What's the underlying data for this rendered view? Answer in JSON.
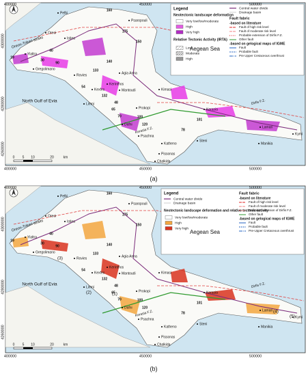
{
  "panel_a": {
    "label": "(a)",
    "x_coords": [
      "400000",
      "450000",
      "500000"
    ],
    "y_coords": [
      "4300000",
      "4280000",
      "4260000"
    ],
    "sea_labels": [
      "Aegean Sea",
      "North Gulf of Evia",
      "Oreon-Trikeri straits"
    ],
    "places": [
      "Pefki",
      "Psaropouli",
      "Oreoi",
      "Istiea",
      "Yialtra",
      "Gregolimano",
      "Rovies",
      "Agia Anna",
      "Kerinthos",
      "Kexfes",
      "Mantoudi",
      "Kimasi",
      "Limni",
      "Prokopi",
      "Kerasia",
      "Dafni",
      "Lamari",
      "Kymi",
      "Psachna",
      "Katheno",
      "Steni",
      "Pissonas",
      "Manikia",
      "Chalkida"
    ],
    "fault_labels": [
      "Dirfis F.Z.",
      "Kerasia F.Z."
    ],
    "basin_ids": [
      "160",
      "175",
      "150",
      "140",
      "133",
      "132",
      "120",
      "54",
      "100",
      "70",
      "78",
      "65",
      "101",
      "19",
      "90",
      "40",
      "30",
      "48"
    ],
    "scale": [
      "0",
      "5",
      "10",
      "20",
      "km"
    ],
    "legend": {
      "title": "Legend",
      "deformation_title": "Neotectonic landscape deformation",
      "deformation": [
        "Very low/low/moderate",
        "High",
        "Very high"
      ],
      "irta_title": "Relative Tectonic Activity (IRTA)",
      "irta": [
        "Low",
        "Moderate",
        "High"
      ],
      "lines": [
        "Central water divide",
        "Drainage basin"
      ],
      "fault_title": "Fault fabric",
      "literature_title": "-based on literature",
      "literature": [
        "Fault of high risk level",
        "Fault of moderate risk level",
        "Probable extension of Dirfis F.Z.",
        "Other fault"
      ],
      "igme_title": "-based on gelogical maps of IGME",
      "igme": [
        "Fault",
        "Probable fault",
        "Pre Upper Cretaceous overthrust"
      ]
    }
  },
  "panel_b": {
    "label": "(b)",
    "x_coords": [
      "400000",
      "450000",
      "500000"
    ],
    "y_coords": [
      "4300000",
      "4280000",
      "4260000"
    ],
    "sea_labels": [
      "Aegean Sea",
      "North Gulf of Evia",
      "Oreon-Trikeri straits"
    ],
    "places": [
      "Pefki",
      "Psaropouli",
      "Oreoi",
      "Istiea",
      "Yialtra",
      "Gregolimano",
      "Rovies",
      "Agia Anna",
      "Kerinthos",
      "Kexfes",
      "Mantoudi",
      "Kimasi",
      "Limni",
      "Prokopi",
      "Kerasia",
      "Dafni",
      "Lamari",
      "Kymi",
      "Psachna",
      "Katheno",
      "Steni",
      "Pissonas",
      "Manikia",
      "Chalkida"
    ],
    "fault_labels": [
      "Dirfis F.Z.",
      "Kerasia F.Z."
    ],
    "basin_ids": [
      "160",
      "175",
      "150",
      "140",
      "133",
      "132",
      "120",
      "54",
      "100",
      "70",
      "78",
      "65",
      "101",
      "19",
      "90",
      "40",
      "30",
      "48"
    ],
    "zones": [
      "(1)",
      "(2)",
      "(3)",
      "(4)",
      "(5)"
    ],
    "scale": [
      "0",
      "5",
      "10",
      "20",
      "km"
    ],
    "legend": {
      "title": "Legend",
      "lines": [
        "Central water divide",
        "Drainage basin"
      ],
      "deformation_title": "Neotectonic landscape deformation and relative tectonic activity",
      "deformation": [
        "Very low/low/moderate",
        "High",
        "Very high"
      ],
      "fault_title": "Fault fabric",
      "literature_title": "-based on literature",
      "literature": [
        "Fault of high risk level",
        "Fault of moderate risk level",
        "Probable extension of Dirfis F.Z.",
        "Other fault"
      ],
      "igme_title": "-based on gelogical maps of IGME",
      "igme": [
        "Fault",
        "Probable fault",
        "Pre-Upper Cretaceous overthrust"
      ]
    }
  }
}
